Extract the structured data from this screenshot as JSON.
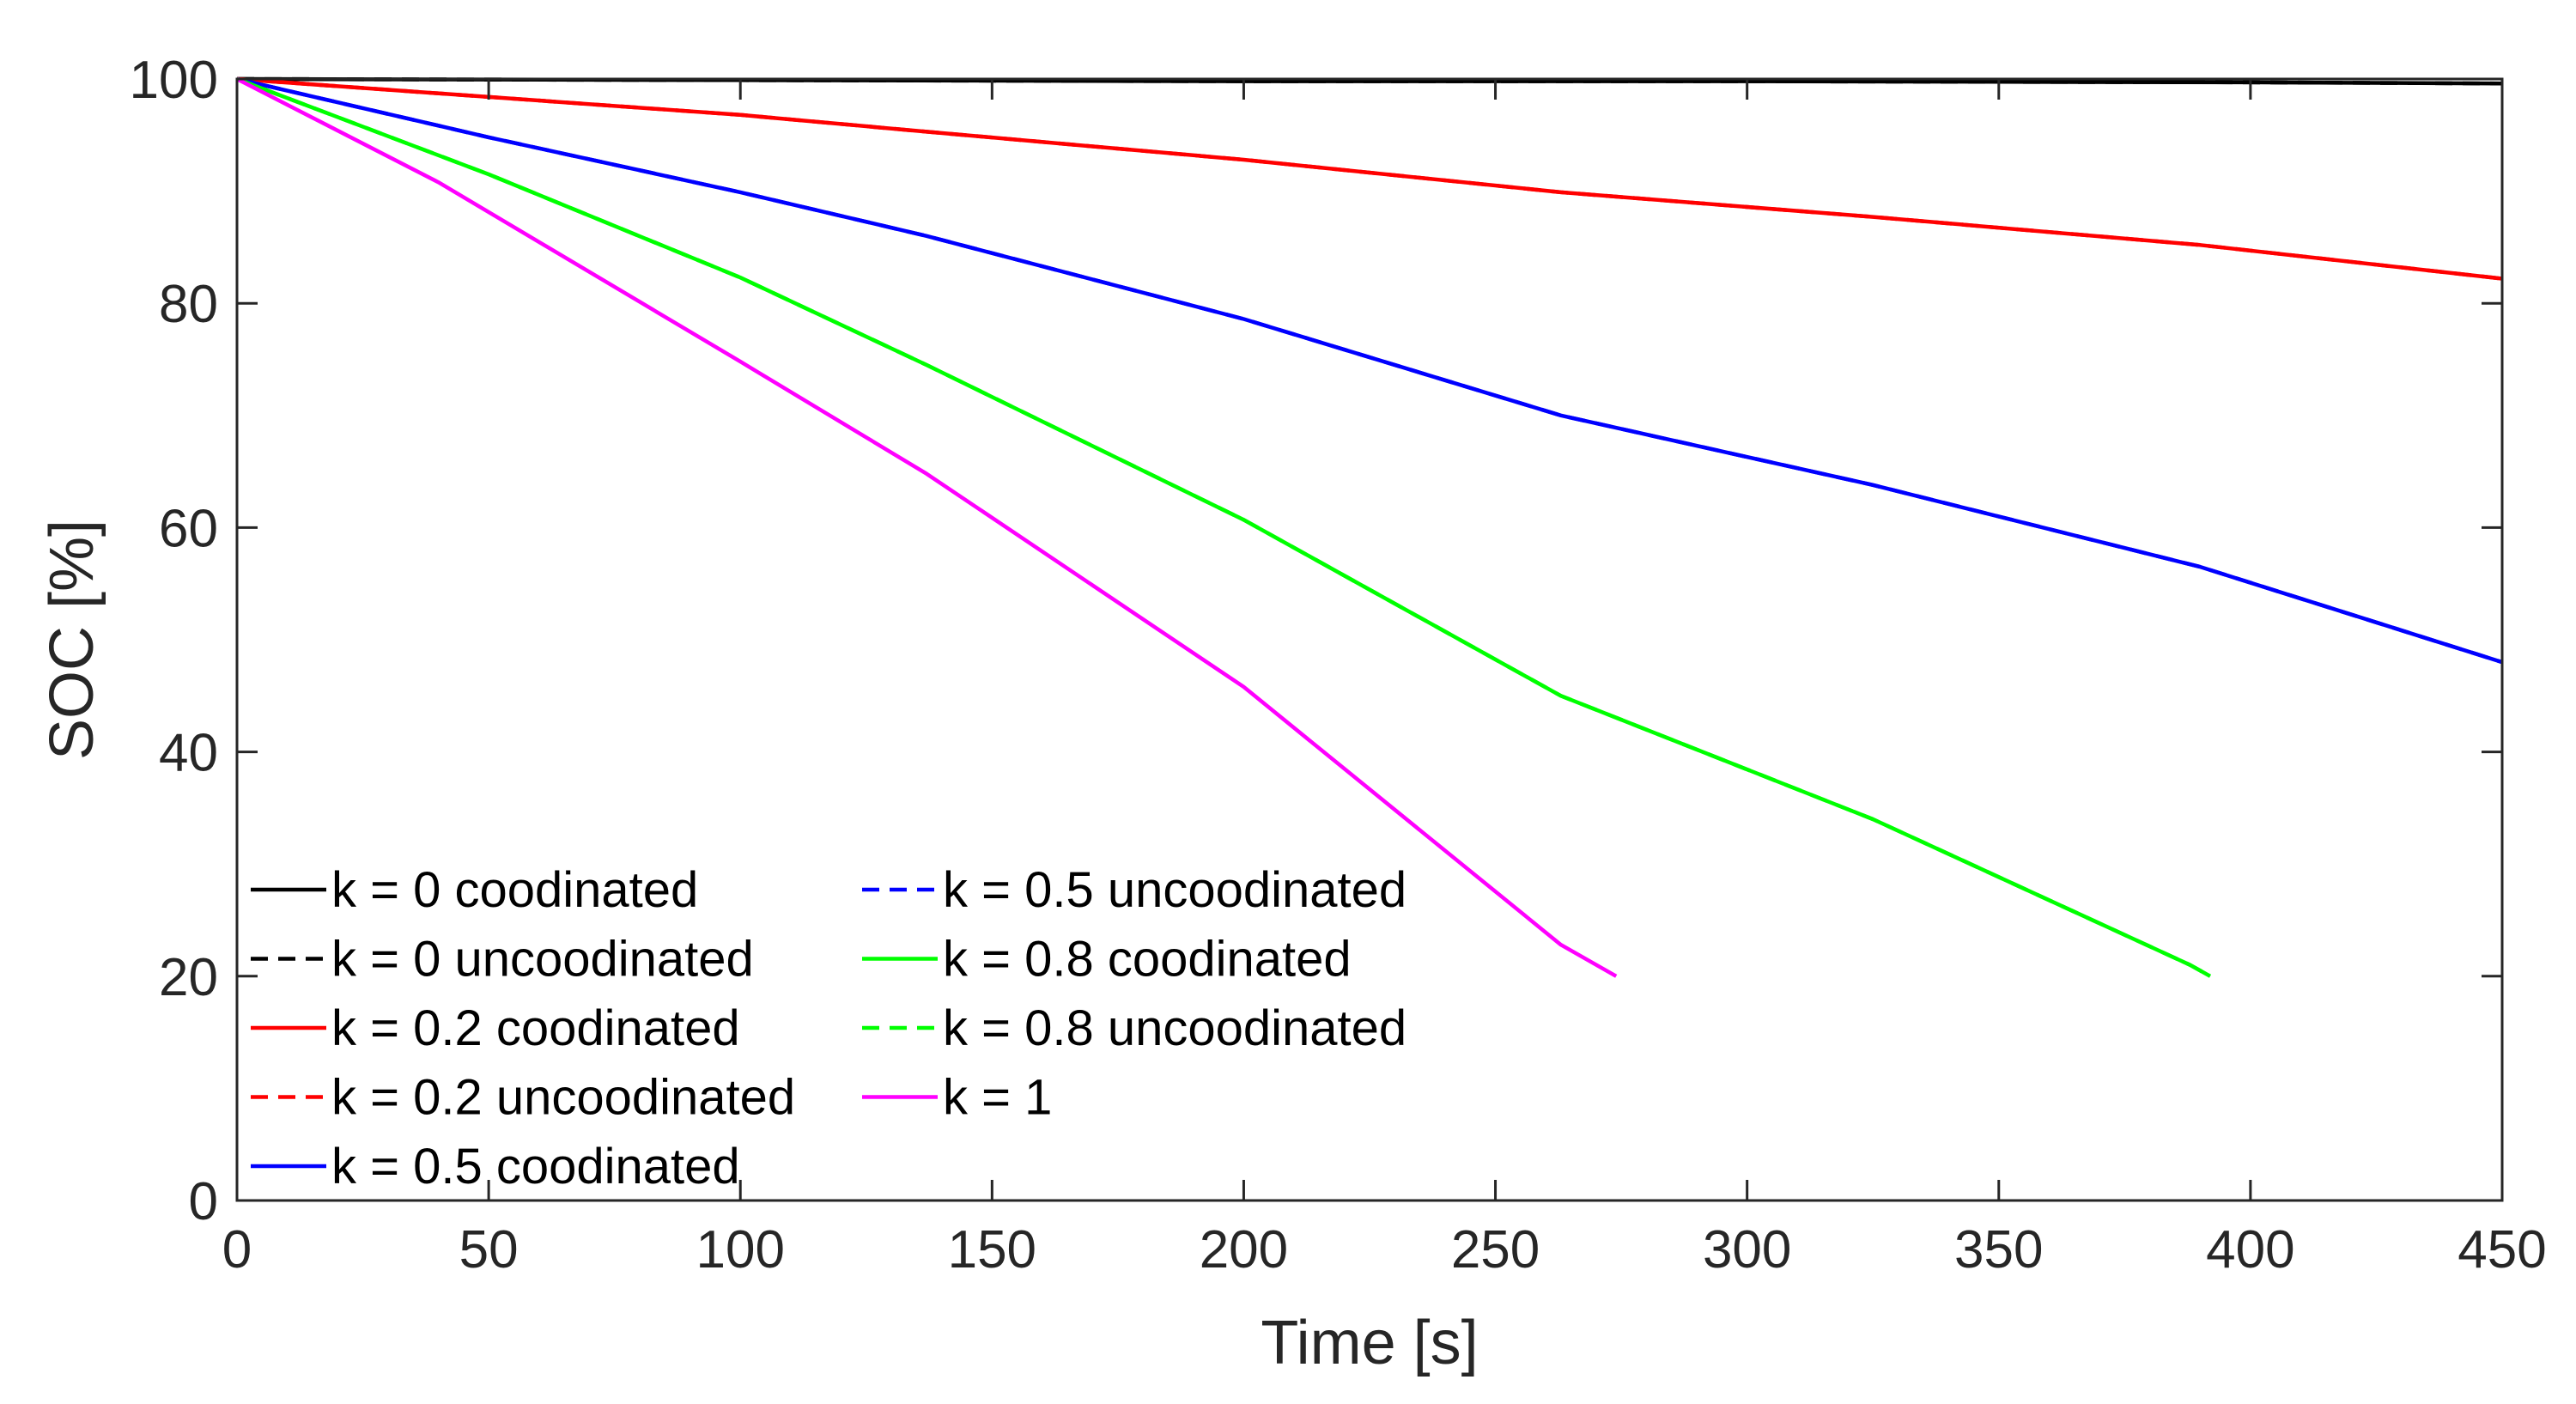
{
  "chart_data": {
    "type": "line",
    "title": "",
    "xlabel": "Time [s]",
    "ylabel": "SOC [%]",
    "xlim": [
      0,
      450
    ],
    "ylim": [
      0,
      100
    ],
    "xticks": [
      0,
      50,
      100,
      150,
      200,
      250,
      300,
      350,
      400,
      450
    ],
    "yticks": [
      0,
      20,
      40,
      60,
      80,
      100
    ],
    "grid": false,
    "legend_position": "bottom-left",
    "legend_columns": 2,
    "series": [
      {
        "name": "k = 0 coodinated",
        "color": "#000000",
        "dash": "solid",
        "x": [
          0,
          100,
          200,
          300,
          400,
          450
        ],
        "y": [
          100,
          99.9,
          99.8,
          99.8,
          99.7,
          99.6
        ]
      },
      {
        "name": "k = 0 uncoodinated",
        "color": "#000000",
        "dash": "dashed",
        "x": [
          0,
          100,
          200,
          300,
          400,
          450
        ],
        "y": [
          100,
          99.9,
          99.8,
          99.8,
          99.7,
          99.6
        ]
      },
      {
        "name": "k = 0.2 coodinated",
        "color": "#ff0000",
        "dash": "solid",
        "x": [
          0,
          50,
          100,
          137,
          200,
          263,
          325,
          390,
          450
        ],
        "y": [
          100,
          98.4,
          96.8,
          95.3,
          92.8,
          89.9,
          87.7,
          85.2,
          82.2
        ]
      },
      {
        "name": "k = 0.2 uncoodinated",
        "color": "#ff0000",
        "dash": "dashed",
        "x": [
          0,
          50,
          100,
          137,
          200,
          263,
          325,
          390,
          450
        ],
        "y": [
          100,
          98.4,
          96.8,
          95.3,
          92.8,
          89.9,
          87.7,
          85.2,
          82.2
        ]
      },
      {
        "name": "k = 0.5 coodinated",
        "color": "#0000ff",
        "dash": "solid",
        "x": [
          0,
          50,
          100,
          137,
          200,
          263,
          325,
          390,
          450
        ],
        "y": [
          100,
          94.8,
          89.9,
          86.0,
          78.6,
          70.0,
          63.8,
          56.5,
          48.0
        ]
      },
      {
        "name": "k = 0.5 uncoodinated",
        "color": "#0000ff",
        "dash": "dashed",
        "x": [
          0,
          50,
          100,
          137,
          200,
          263,
          325,
          390,
          450
        ],
        "y": [
          100,
          94.8,
          89.9,
          86.0,
          78.6,
          70.0,
          63.8,
          56.5,
          48.0
        ]
      },
      {
        "name": "k = 0.8 coodinated",
        "color": "#00ff00",
        "dash": "solid",
        "x": [
          0,
          50,
          100,
          137,
          200,
          263,
          325,
          388,
          392
        ],
        "y": [
          100,
          91.5,
          82.3,
          74.5,
          60.7,
          45.0,
          34.0,
          21.0,
          20.0
        ]
      },
      {
        "name": "k = 0.8 uncoodinated",
        "color": "#00ff00",
        "dash": "dashed",
        "x": [
          0,
          50,
          100,
          137,
          200,
          263,
          325,
          388,
          392
        ],
        "y": [
          100,
          91.5,
          82.3,
          74.5,
          60.7,
          45.0,
          34.0,
          21.0,
          20.0
        ]
      },
      {
        "name": "k = 1",
        "color": "#ff00ff",
        "dash": "solid",
        "x": [
          0,
          40,
          100,
          137,
          200,
          263,
          274
        ],
        "y": [
          100,
          90.8,
          74.8,
          64.8,
          45.8,
          22.8,
          20.0
        ]
      }
    ]
  }
}
